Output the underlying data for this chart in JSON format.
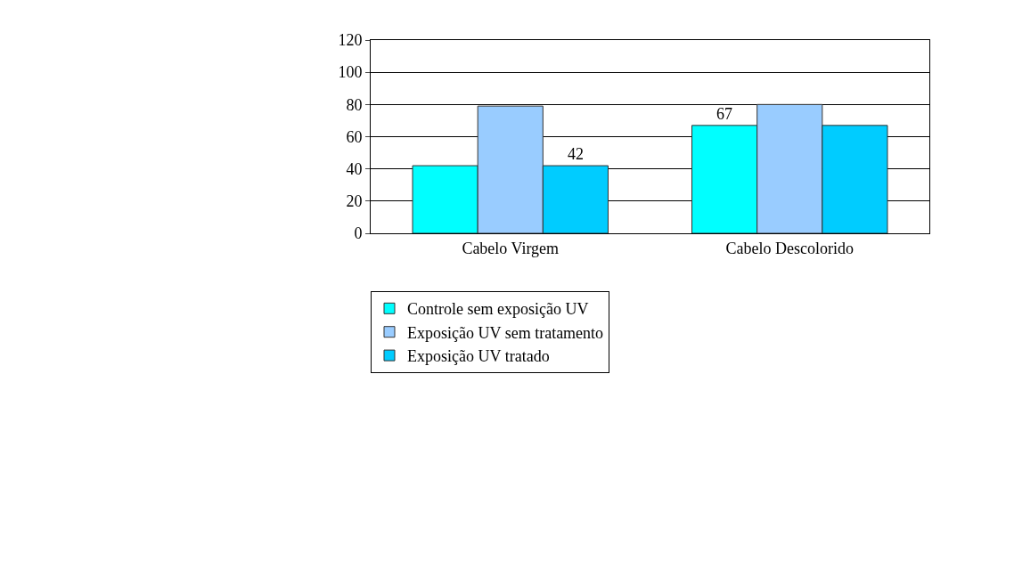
{
  "chart_data": {
    "type": "bar",
    "categories": [
      "Cabelo Virgem",
      "Cabelo Descolorido"
    ],
    "series": [
      {
        "name": "Controle sem exposição UV",
        "color": "#00ffff",
        "values": [
          42,
          67
        ],
        "value_labels": [
          null,
          "67"
        ]
      },
      {
        "name": "Exposição UV sem tratamento",
        "color": "#99ccff",
        "values": [
          79,
          80
        ],
        "value_labels": [
          null,
          null
        ]
      },
      {
        "name": "Exposição UV tratado",
        "color": "#00ccff",
        "values": [
          42,
          67
        ],
        "value_labels": [
          "42",
          null
        ]
      }
    ],
    "ylim": [
      0,
      120
    ],
    "yticks": [
      0,
      20,
      40,
      60,
      80,
      100,
      120
    ],
    "grid": "y",
    "legend": "bottom left"
  }
}
